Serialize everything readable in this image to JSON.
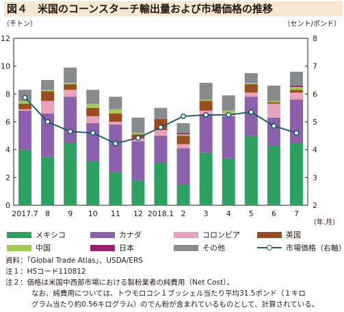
{
  "title": "図４　米国のコーンスターチ輸出量および市場価格の推移",
  "chart_data": {
    "type": "bar",
    "stacked": true,
    "categories": [
      "2017.7",
      "8",
      "9",
      "10",
      "11",
      "12",
      "2018.1",
      "2",
      "3",
      "4",
      "5",
      "6",
      "7"
    ],
    "x_unit_label": "（年.月）",
    "left_axis": {
      "unit_label": "（千トン）",
      "ylim": [
        0,
        12
      ],
      "ticks": [
        0,
        2,
        4,
        6,
        8,
        10,
        12
      ]
    },
    "right_axis": {
      "unit_label": "（セント/ポンド）",
      "ylim": [
        2,
        8
      ],
      "ticks": [
        2,
        3,
        4,
        5,
        6,
        7,
        8
      ]
    },
    "grid": false,
    "series": [
      {
        "name": "メキシコ",
        "color": "#2ea062",
        "values": [
          4.0,
          3.5,
          4.5,
          3.2,
          2.4,
          1.8,
          3.1,
          1.5,
          3.8,
          3.4,
          5.0,
          4.3,
          4.5
        ]
      },
      {
        "name": "カナダ",
        "color": "#8a61aa",
        "values": [
          2.8,
          3.1,
          3.3,
          2.7,
          3.4,
          2.8,
          1.9,
          2.6,
          2.7,
          3.0,
          2.8,
          2.0,
          3.1
        ]
      },
      {
        "name": "コロンビア",
        "color": "#e8a2bb",
        "values": [
          0.1,
          0.9,
          0.5,
          0.5,
          0.2,
          0.2,
          0.4,
          0.3,
          0.3,
          0.2,
          0.3,
          1.0,
          0.5
        ]
      },
      {
        "name": "英国",
        "color": "#9a4d21",
        "values": [
          0.4,
          0.7,
          0.4,
          0.6,
          0.6,
          0.3,
          0.8,
          0.6,
          0.7,
          0.0,
          0.6,
          0.1,
          0.2
        ]
      },
      {
        "name": "中国",
        "color": "#a3c957",
        "values": [
          0.2,
          0.1,
          0.1,
          0.3,
          0.3,
          0.1,
          0.0,
          0.1,
          0.1,
          0.2,
          0.1,
          0.1,
          0.2
        ]
      },
      {
        "name": "日本",
        "color": "#9a1f6b",
        "values": [
          0.0,
          0.0,
          0.0,
          0.0,
          0.0,
          0.0,
          0.0,
          0.1,
          0.0,
          0.0,
          0.0,
          0.0,
          0.1
        ]
      },
      {
        "name": "その他",
        "color": "#878b8d",
        "values": [
          0.8,
          0.7,
          1.1,
          1.0,
          0.9,
          1.1,
          0.8,
          0.7,
          1.2,
          1.1,
          0.7,
          1.1,
          1.0
        ]
      }
    ],
    "line_series": {
      "name": "市場価格（右軸）",
      "color": "#1f5b6e",
      "axis": "right",
      "values": [
        5.87,
        5.0,
        4.65,
        4.6,
        4.22,
        4.42,
        4.8,
        5.2,
        5.25,
        5.25,
        5.35,
        4.85,
        4.6
      ]
    }
  },
  "notes": [
    "資料：「Global Trade Atlas」、USDA/ERS",
    "注１：HSコード110812",
    "注２：価格は米国中西部市場における製粉業者の純費用（Net Cost）。",
    "なお、純費用については、トウモロコシ１ブッシェル当たり平均31.5ポンド（１キロ",
    "グラム当たり約0.56キログラム）のでん粉が含まれているものとして、計算されている。"
  ]
}
